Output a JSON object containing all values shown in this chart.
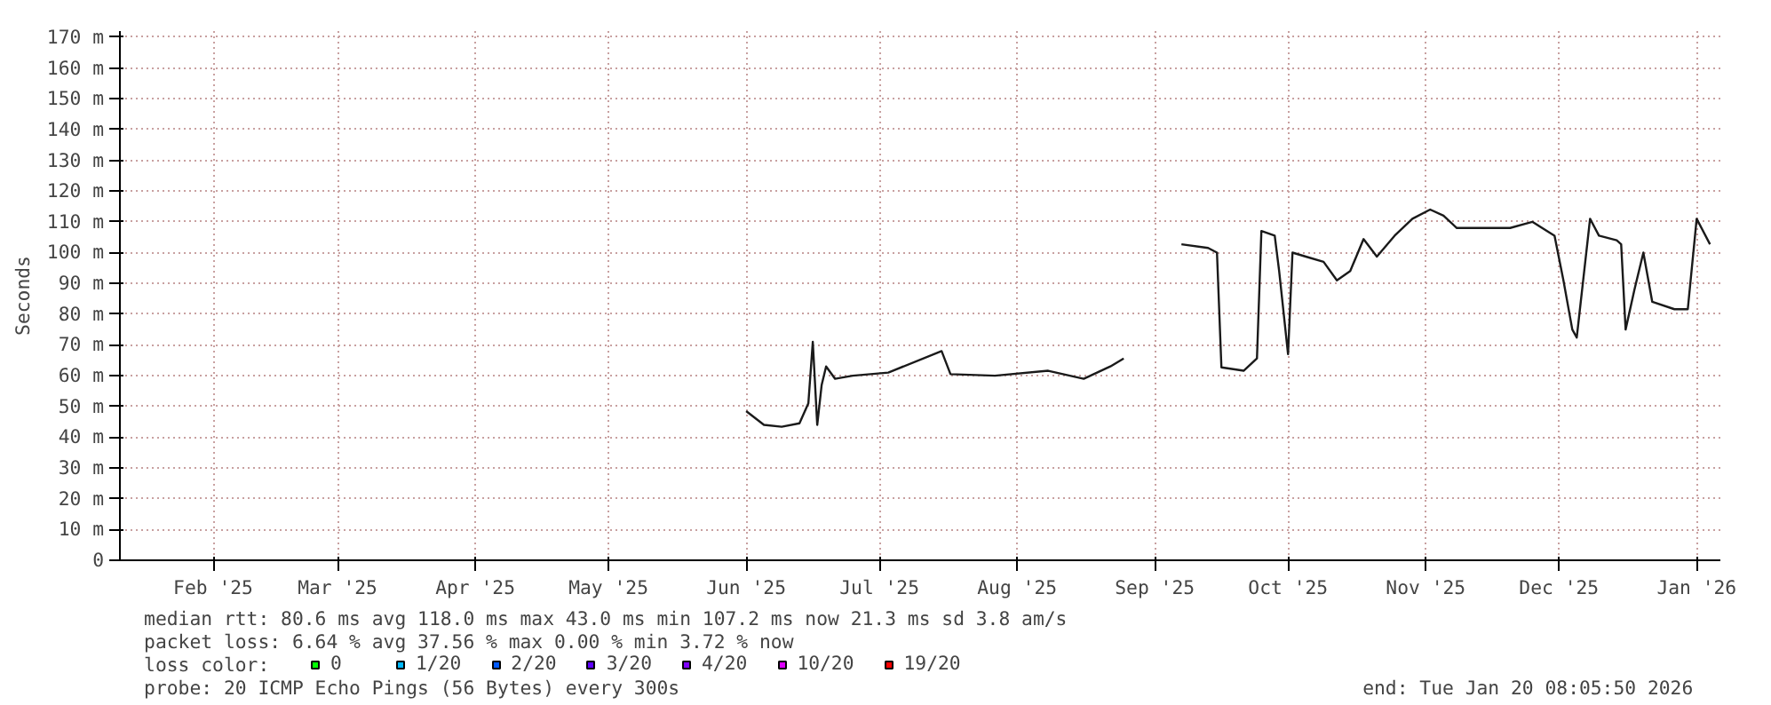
{
  "chart_data": {
    "type": "line",
    "ylabel": "Seconds",
    "legend_title": "loss color:",
    "legend": "bottom",
    "grid": true,
    "line_style": "solid",
    "marker": "none",
    "xlim": [
      "2025-01-25",
      "2026-01-20T08:05"
    ],
    "xticks": [
      {
        "value": "2025-02-15",
        "label": "Feb '25"
      },
      {
        "value": "2025-03-15",
        "label": "Mar '25"
      },
      {
        "value": "2025-04-15",
        "label": "Apr '25"
      },
      {
        "value": "2025-05-15",
        "label": "May '25"
      },
      {
        "value": "2025-06-15",
        "label": "Jun '25"
      },
      {
        "value": "2025-07-15",
        "label": "Jul '25"
      },
      {
        "value": "2025-08-15",
        "label": "Aug '25"
      },
      {
        "value": "2025-09-15",
        "label": "Sep '25"
      },
      {
        "value": "2025-10-15",
        "label": "Oct '25"
      },
      {
        "value": "2025-11-15",
        "label": "Nov '25"
      },
      {
        "value": "2025-12-15",
        "label": "Dec '25"
      },
      {
        "value": "2026-01-15",
        "label": "Jan '26"
      }
    ],
    "ylim": [
      0,
      172
    ],
    "yticks": [
      0,
      {
        "value": 10,
        "label": "10 m"
      },
      {
        "value": 20,
        "label": "20 m"
      },
      {
        "value": 30,
        "label": "30 m"
      },
      {
        "value": 40,
        "label": "40 m"
      },
      {
        "value": 50,
        "label": "50 m"
      },
      {
        "value": 60,
        "label": "60 m"
      },
      {
        "value": 70,
        "label": "70 m"
      },
      {
        "value": 80,
        "label": "80 m"
      },
      {
        "value": 90,
        "label": "90 m"
      },
      {
        "value": 100,
        "label": "100 m"
      },
      {
        "value": 110,
        "label": "110 m"
      },
      {
        "value": 120,
        "label": "120 m"
      },
      {
        "value": 130,
        "label": "130 m"
      },
      {
        "value": 140,
        "label": "140 m"
      },
      {
        "value": 150,
        "label": "150 m"
      },
      {
        "value": 160,
        "label": "160 m"
      },
      {
        "value": 170,
        "label": "170 m"
      }
    ],
    "x": [
      "2025-06-15",
      "2025-06-19",
      "2025-06-23",
      "2025-06-27",
      "2025-06-29",
      "2025-06-30",
      "2025-07-01",
      "2025-07-02",
      "2025-07-03",
      "2025-07-05",
      "2025-07-09",
      "2025-07-17",
      "2025-07-29",
      "2025-07-31",
      "2025-08-10",
      "2025-08-22",
      "2025-08-30",
      "2025-09-05",
      "2025-09-08",
      "2025-09-15",
      "2025-09-21",
      "2025-09-27",
      "2025-09-29",
      "2025-09-30",
      "2025-10-05",
      "2025-10-08",
      "2025-10-09",
      "2025-10-12",
      "2025-10-13",
      "2025-10-15",
      "2025-10-16",
      "2025-10-19",
      "2025-10-23",
      "2025-10-26",
      "2025-10-29",
      "2025-11-01",
      "2025-11-04",
      "2025-11-08",
      "2025-11-12",
      "2025-11-16",
      "2025-11-19",
      "2025-11-22",
      "2025-11-28",
      "2025-12-04",
      "2025-12-09",
      "2025-12-14",
      "2025-12-16",
      "2025-12-18",
      "2025-12-19",
      "2025-12-22",
      "2025-12-24",
      "2025-12-28",
      "2025-12-29",
      "2025-12-30",
      "2026-01-01",
      "2026-01-03",
      "2026-01-05",
      "2026-01-10",
      "2026-01-13",
      "2026-01-15",
      "2026-01-18"
    ],
    "series": [
      {
        "color": "#1a1a1a",
        "values": [
          48.5,
          44,
          43.4,
          44.5,
          51,
          71,
          44,
          57,
          63,
          59,
          60,
          61,
          68,
          60.5,
          60,
          61.6,
          59,
          63,
          65.6,
          null,
          102.7,
          101.5,
          100,
          62.7,
          61.6,
          65.6,
          107,
          105.5,
          94,
          67,
          100,
          98.7,
          97,
          91,
          94,
          104.4,
          98.7,
          105.5,
          111,
          114,
          112,
          108,
          108,
          108,
          110,
          105.5,
          91,
          75,
          72.4,
          111,
          105.5,
          104,
          102.7,
          75,
          88,
          100,
          84,
          81.6,
          81.6,
          111,
          102.7
        ]
      },
      {
        "name": "0",
        "color": "#00ff00",
        "values": [
          null,
          null,
          null,
          null,
          null,
          null,
          null,
          null,
          null,
          null,
          null,
          null,
          null,
          null,
          null,
          null,
          null,
          null,
          null,
          null,
          null,
          null,
          null,
          null,
          null,
          null,
          null,
          null,
          null,
          null,
          null,
          null,
          null,
          null,
          null,
          null,
          null,
          null,
          null,
          null,
          null,
          null,
          null,
          null,
          null,
          null,
          null,
          null,
          null,
          null,
          null,
          null,
          null,
          null,
          null,
          null,
          null,
          null,
          null,
          null,
          null
        ]
      },
      {
        "name": "1/20",
        "color": "#00b8ff",
        "values": [
          null,
          null,
          null,
          null,
          null,
          null,
          null,
          null,
          null,
          null,
          null,
          null,
          null,
          null,
          null,
          null,
          null,
          null,
          null,
          null,
          null,
          null,
          null,
          null,
          null,
          null,
          null,
          null,
          null,
          null,
          null,
          null,
          null,
          null,
          null,
          null,
          null,
          null,
          null,
          null,
          null,
          null,
          null,
          null,
          null,
          null,
          null,
          null,
          null,
          null,
          null,
          null,
          null,
          null,
          null,
          null,
          null,
          null,
          null,
          null,
          null
        ]
      },
      {
        "name": "2/20",
        "color": "#0059ff",
        "values": [
          null,
          null,
          null,
          null,
          null,
          null,
          null,
          null,
          null,
          null,
          null,
          null,
          null,
          null,
          null,
          null,
          null,
          null,
          null,
          null,
          null,
          null,
          null,
          null,
          null,
          null,
          null,
          null,
          null,
          null,
          null,
          null,
          null,
          null,
          null,
          null,
          null,
          null,
          null,
          null,
          null,
          null,
          null,
          null,
          null,
          null,
          null,
          null,
          null,
          null,
          null,
          null,
          null,
          null,
          null,
          null,
          null,
          null,
          null,
          null,
          null
        ]
      },
      {
        "name": "3/20",
        "color": "#5e00ff",
        "values": [
          null,
          null,
          null,
          null,
          null,
          null,
          null,
          null,
          null,
          null,
          null,
          null,
          null,
          null,
          null,
          null,
          null,
          null,
          null,
          null,
          null,
          null,
          null,
          null,
          null,
          null,
          null,
          null,
          null,
          null,
          null,
          null,
          null,
          null,
          null,
          null,
          null,
          null,
          null,
          null,
          null,
          null,
          null,
          null,
          null,
          null,
          null,
          null,
          null,
          null,
          null,
          null,
          null,
          null,
          null,
          null,
          null,
          null,
          null,
          null,
          null
        ]
      },
      {
        "name": "4/20",
        "color": "#7e00ff",
        "values": [
          null,
          null,
          null,
          null,
          null,
          null,
          null,
          null,
          null,
          null,
          null,
          null,
          null,
          null,
          null,
          null,
          null,
          null,
          null,
          null,
          null,
          null,
          null,
          null,
          null,
          null,
          null,
          null,
          null,
          null,
          null,
          null,
          null,
          null,
          null,
          null,
          null,
          null,
          null,
          null,
          null,
          null,
          null,
          null,
          null,
          null,
          null,
          null,
          null,
          null,
          null,
          null,
          null,
          null,
          null,
          null,
          null,
          null,
          null,
          null,
          null
        ]
      },
      {
        "name": "10/20",
        "color": "#dd00ff",
        "values": [
          null,
          null,
          null,
          null,
          null,
          null,
          null,
          null,
          null,
          null,
          null,
          null,
          null,
          null,
          null,
          null,
          null,
          null,
          null,
          null,
          null,
          null,
          null,
          null,
          null,
          null,
          null,
          null,
          null,
          null,
          null,
          null,
          null,
          null,
          null,
          null,
          null,
          null,
          null,
          null,
          null,
          null,
          null,
          null,
          null,
          null,
          null,
          null,
          null,
          null,
          null,
          null,
          null,
          null,
          null,
          null,
          null,
          null,
          null,
          null,
          null
        ]
      },
      {
        "name": "19/20",
        "color": "#ff0000",
        "values": [
          null,
          null,
          null,
          null,
          null,
          null,
          null,
          null,
          null,
          null,
          null,
          null,
          null,
          null,
          null,
          null,
          null,
          null,
          null,
          null,
          null,
          null,
          null,
          null,
          null,
          null,
          null,
          null,
          null,
          null,
          null,
          null,
          null,
          null,
          null,
          null,
          null,
          null,
          null,
          null,
          null,
          null,
          null,
          null,
          null,
          null,
          null,
          null,
          null,
          null,
          null,
          null,
          null,
          null,
          null,
          null,
          null,
          null,
          null,
          null,
          null
        ]
      }
    ],
    "annotations": [
      "median rtt:  80.6 ms avg  118.0 ms max  43.0 ms min  107.2 ms now  21.3 ms sd  3.8   am/s",
      "packet loss: 6.64 % avg  37.56 % max  0.00 % min  3.72 % now",
      "probe:       20 ICMP Echo Pings (56 Bytes) every 300s",
      "end: Tue Jan 20 08:05:50 2026"
    ]
  }
}
